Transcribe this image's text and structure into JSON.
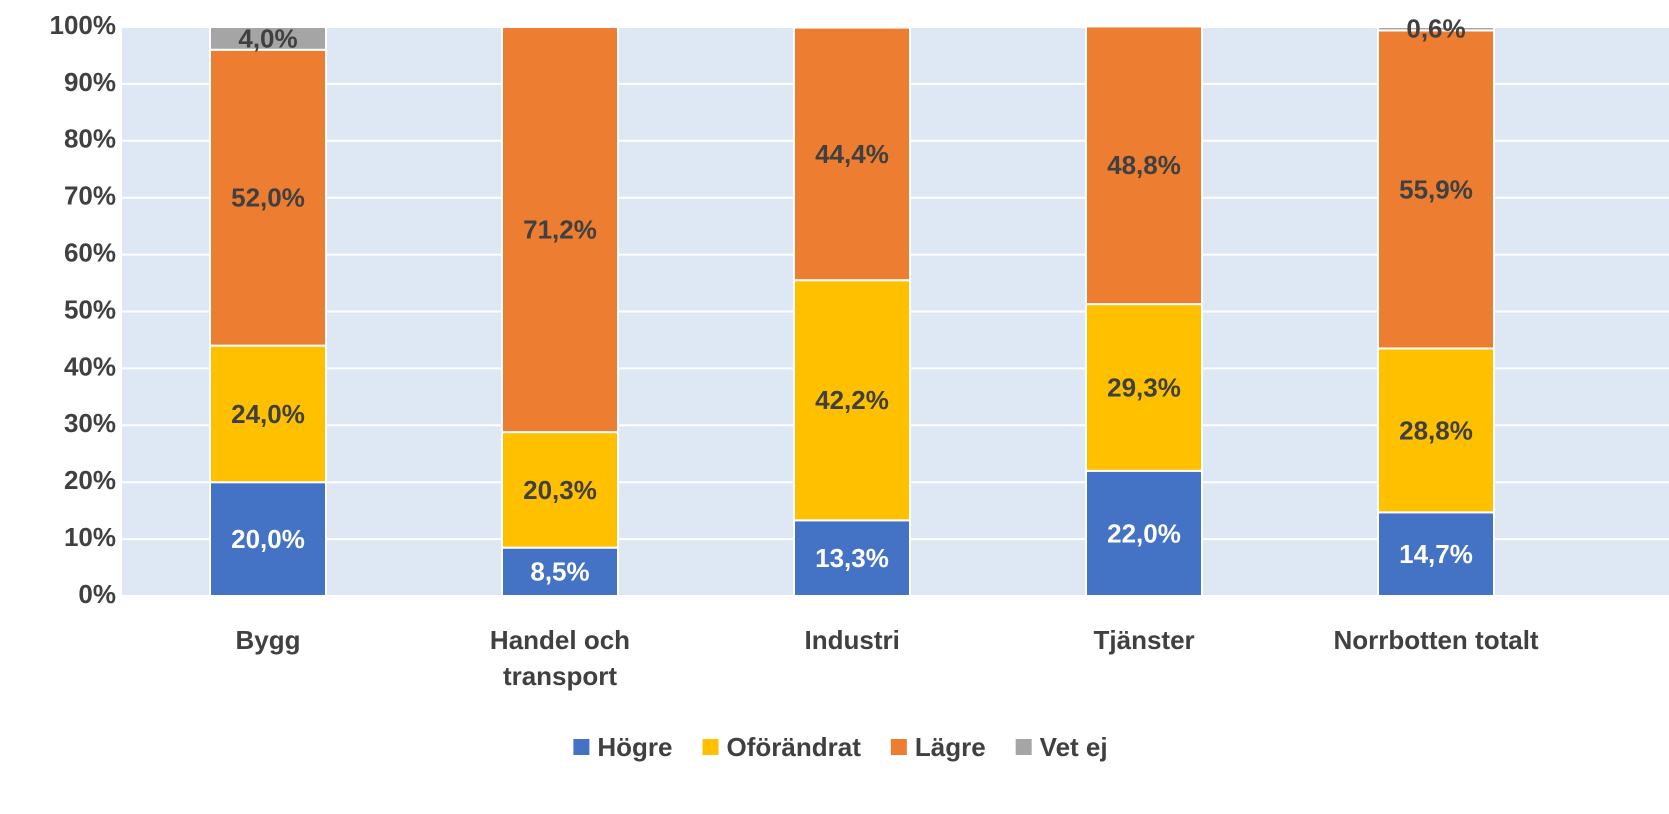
{
  "chart_data": {
    "type": "stacked_bar",
    "categories": [
      "Bygg",
      "Handel och transport",
      "Industri",
      "Tjänster",
      "Norrbotten totalt"
    ],
    "series": [
      {
        "name": "Högre",
        "color": "#4472c4",
        "values": [
          20.0,
          8.5,
          13.3,
          22.0,
          14.7
        ],
        "value_labels": [
          "20,0%",
          "8,5%",
          "13,3%",
          "22,0%",
          "14,7%"
        ]
      },
      {
        "name": "Oförändrat",
        "color": "#ffc000",
        "values": [
          24.0,
          20.3,
          42.2,
          29.3,
          28.8
        ],
        "value_labels": [
          "24,0%",
          "20,3%",
          "42,2%",
          "29,3%",
          "28,8%"
        ]
      },
      {
        "name": "Lägre",
        "color": "#ed7d31",
        "values": [
          52.0,
          71.2,
          44.4,
          48.8,
          55.9
        ],
        "value_labels": [
          "52,0%",
          "71,2%",
          "44,4%",
          "48,8%",
          "55,9%"
        ]
      },
      {
        "name": "Vet ej",
        "color": "#a5a5a5",
        "values": [
          4.0,
          null,
          null,
          null,
          0.6
        ],
        "value_labels": [
          "4,0%",
          null,
          null,
          null,
          "0,6%"
        ]
      }
    ],
    "ylim": [
      0,
      100
    ],
    "yticks": [
      {
        "value": 0,
        "label": "0%"
      },
      {
        "value": 10,
        "label": "10%"
      },
      {
        "value": 20,
        "label": "20%"
      },
      {
        "value": 30,
        "label": "30%"
      },
      {
        "value": 40,
        "label": "40%"
      },
      {
        "value": 50,
        "label": "50%"
      },
      {
        "value": 60,
        "label": "60%"
      },
      {
        "value": 70,
        "label": "70%"
      },
      {
        "value": 80,
        "label": "80%"
      },
      {
        "value": 90,
        "label": "90%"
      },
      {
        "value": 100,
        "label": "100%"
      }
    ],
    "grid": true,
    "legend": "bottom"
  }
}
